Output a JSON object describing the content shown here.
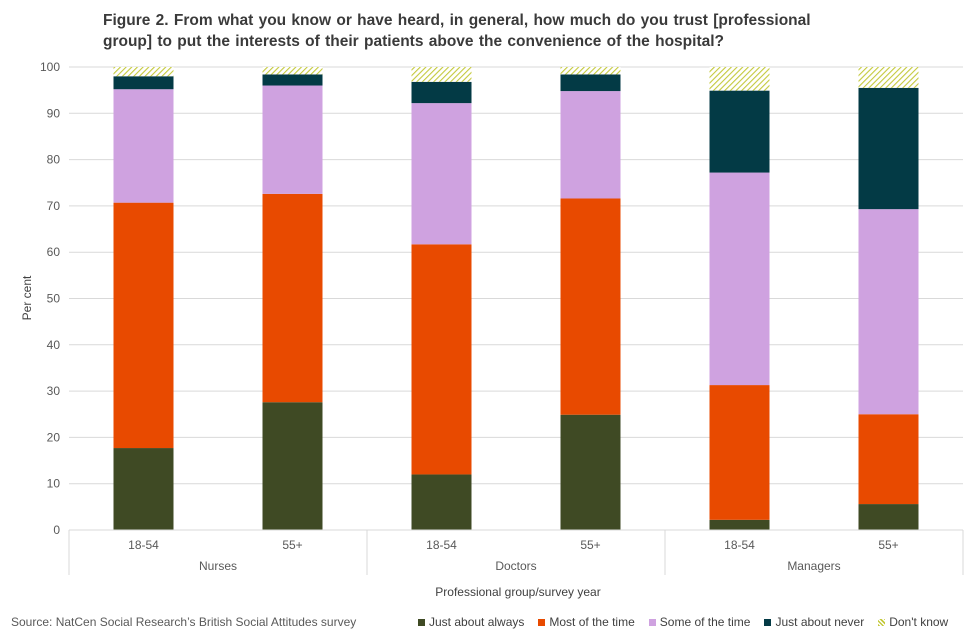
{
  "title_line1": "Figure 2. From what you know or have heard, in general, how much do you trust [professional",
  "title_line2": "group] to put the interests of their patients above the convenience of the hospital?",
  "source": "Source: NatCen Social Research’s British Social Attitudes survey",
  "chart_data": {
    "type": "bar",
    "stacked": true,
    "title": "Figure 2. From what you know or have heard, in general, how much do you trust [professional group] to put the interests of their patients above the convenience of the hospital?",
    "xlabel": "Professional group/survey year",
    "ylabel": "Per cent",
    "ylim": [
      0,
      100
    ],
    "yticks": [
      0,
      10,
      20,
      30,
      40,
      50,
      60,
      70,
      80,
      90,
      100
    ],
    "groups": [
      "Nurses",
      "Doctors",
      "Managers"
    ],
    "categories": [
      "18-54",
      "55+",
      "18-54",
      "55+",
      "18-54",
      "55+"
    ],
    "legend_position": "bottom-right",
    "series": [
      {
        "name": "Just about always",
        "color": "#3f4a24",
        "values": [
          17.7,
          27.6,
          12.0,
          24.9,
          2.2,
          5.6
        ]
      },
      {
        "name": "Most of the time",
        "color": "#e84a00",
        "values": [
          53.0,
          45.0,
          49.7,
          46.7,
          29.1,
          19.4
        ]
      },
      {
        "name": "Some of the time",
        "color": "#cfa2e0",
        "values": [
          24.5,
          23.4,
          30.5,
          23.2,
          45.9,
          44.3
        ]
      },
      {
        "name": "Just about never",
        "color": "#033a45",
        "values": [
          2.8,
          2.4,
          4.6,
          3.6,
          17.7,
          26.2
        ]
      },
      {
        "name": "Don't know",
        "color": "#c4c93c",
        "values": [
          2.0,
          1.6,
          3.2,
          1.6,
          5.1,
          4.5
        ]
      }
    ]
  }
}
